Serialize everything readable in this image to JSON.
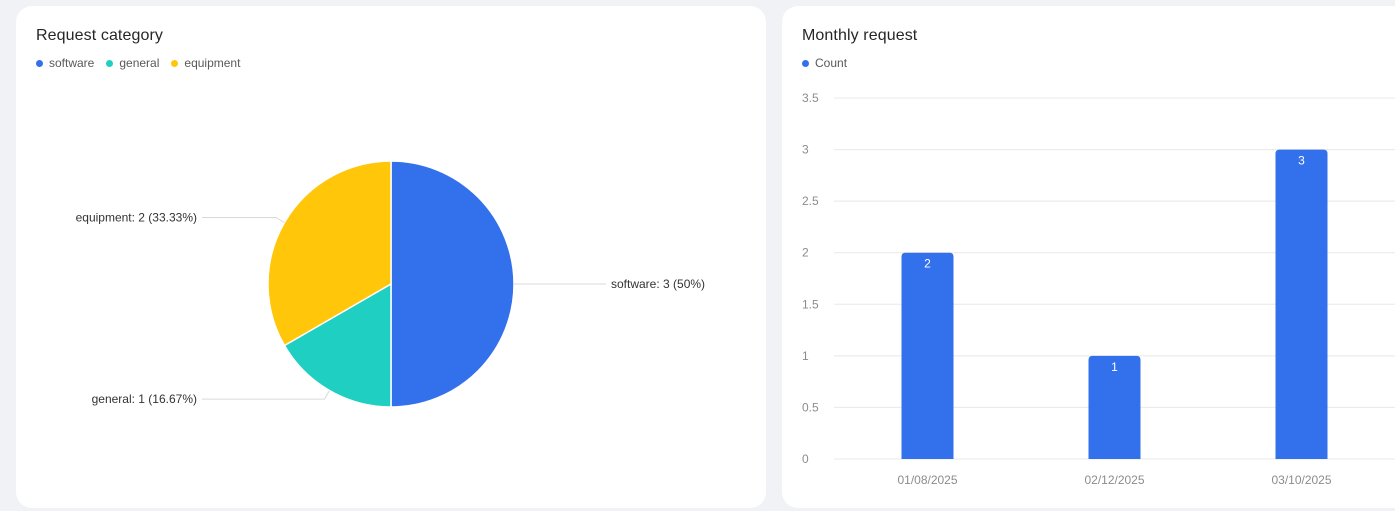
{
  "colors": {
    "software": "#3370eb",
    "general": "#1fcfc1",
    "equipment": "#ffc60a",
    "count": "#3370eb"
  },
  "chart_data": [
    {
      "type": "pie",
      "title": "Request category",
      "legend_position": "top-left",
      "slices": [
        {
          "name": "software",
          "value": 3,
          "percent": 50,
          "label": "software: 3 (50%)"
        },
        {
          "name": "general",
          "value": 1,
          "percent": 16.67,
          "label": "general: 1 (16.67%)"
        },
        {
          "name": "equipment",
          "value": 2,
          "percent": 33.33,
          "label": "equipment: 2 (33.33%)"
        }
      ]
    },
    {
      "type": "bar",
      "title": "Monthly request",
      "legend_position": "top-left",
      "categories": [
        "01/08/2025",
        "02/12/2025",
        "03/10/2025"
      ],
      "series": [
        {
          "name": "Count",
          "values": [
            2,
            1,
            3
          ]
        }
      ],
      "ylim": [
        0,
        3.5
      ],
      "yticks": [
        "0",
        "0.5",
        "1",
        "1.5",
        "2",
        "2.5",
        "3",
        "3.5"
      ],
      "grid": true
    }
  ]
}
